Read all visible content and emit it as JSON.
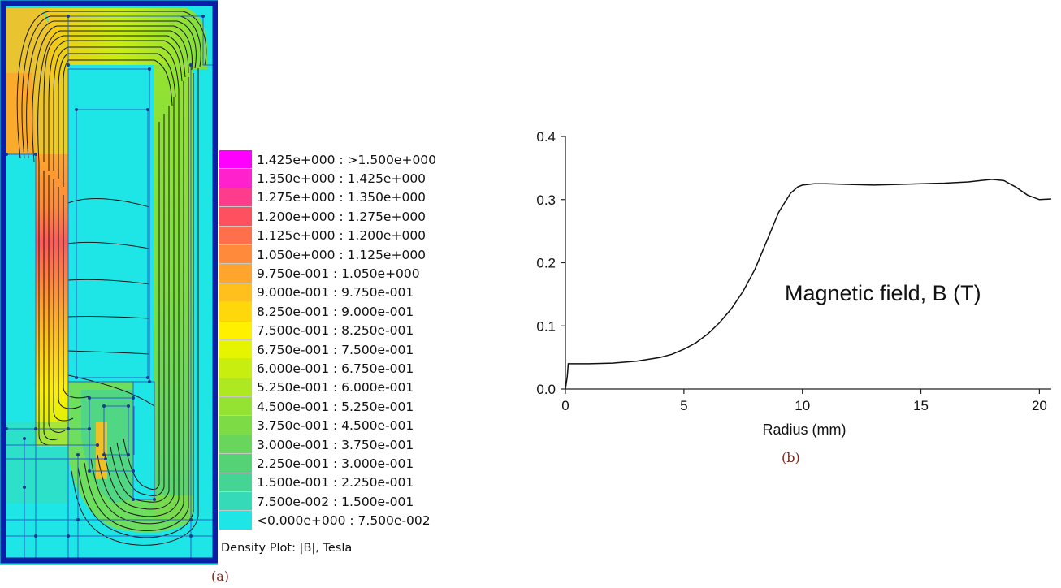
{
  "panel_a": {
    "label": "(a)",
    "caption": "Density Plot: |B|, Tesla",
    "legend": [
      {
        "range": "1.425e+000 : >1.500e+000",
        "color": "#ff00ff"
      },
      {
        "range": "1.350e+000 : 1.425e+000",
        "color": "#ff22cc"
      },
      {
        "range": "1.275e+000 : 1.350e+000",
        "color": "#ff3c8c"
      },
      {
        "range": "1.200e+000 : 1.275e+000",
        "color": "#ff5060"
      },
      {
        "range": "1.125e+000 : 1.200e+000",
        "color": "#ff6f4c"
      },
      {
        "range": "1.050e+000 : 1.125e+000",
        "color": "#ff8a3c"
      },
      {
        "range": "9.750e-001 : 1.050e+000",
        "color": "#ffa52c"
      },
      {
        "range": "9.000e-001 : 9.750e-001",
        "color": "#ffbf1c"
      },
      {
        "range": "8.250e-001 : 9.000e-001",
        "color": "#ffd80c"
      },
      {
        "range": "7.500e-001 : 8.250e-001",
        "color": "#fff000"
      },
      {
        "range": "6.750e-001 : 7.500e-001",
        "color": "#e6f400"
      },
      {
        "range": "6.000e-001 : 6.750e-001",
        "color": "#c8ee10"
      },
      {
        "range": "5.250e-001 : 6.000e-001",
        "color": "#aee820"
      },
      {
        "range": "4.500e-001 : 5.250e-001",
        "color": "#94e232"
      },
      {
        "range": "3.750e-001 : 4.500e-001",
        "color": "#7ddc46"
      },
      {
        "range": "3.000e-001 : 3.750e-001",
        "color": "#68d65c"
      },
      {
        "range": "2.250e-001 : 3.000e-001",
        "color": "#55d276"
      },
      {
        "range": "1.500e-001 : 2.250e-001",
        "color": "#44d494"
      },
      {
        "range": "7.500e-002 : 1.500e-001",
        "color": "#35dbb8"
      },
      {
        "range": "<0.000e+000 : 7.500e-002",
        "color": "#1fe6e6"
      }
    ]
  },
  "panel_b": {
    "label": "(b)",
    "annotation": "Magnetic field, B (T)"
  },
  "chart_data": {
    "type": "line",
    "title": "",
    "xlabel": "Radius (mm)",
    "ylabel": "",
    "xlim": [
      0,
      20.5
    ],
    "ylim": [
      0,
      0.4
    ],
    "xticks": [
      0,
      5,
      10,
      15,
      20
    ],
    "yticks": [
      0.0,
      0.1,
      0.2,
      0.3,
      0.4
    ],
    "ytick_labels": [
      "0.0",
      "0.1",
      "0.2",
      "0.3",
      "0.4"
    ],
    "grid": false,
    "series": [
      {
        "x": [
          0,
          0.08,
          0.12,
          1,
          2,
          3,
          4,
          4.5,
          5,
          5.5,
          6,
          6.5,
          7,
          7.5,
          8,
          8.5,
          9,
          9.5,
          9.8,
          10,
          10.5,
          11,
          12,
          13,
          14,
          15,
          16,
          17,
          17.5,
          18,
          18.5,
          19,
          19.5,
          20,
          20.5
        ],
        "y": [
          0.0,
          0.02,
          0.04,
          0.04,
          0.041,
          0.044,
          0.05,
          0.055,
          0.063,
          0.073,
          0.087,
          0.105,
          0.127,
          0.155,
          0.19,
          0.235,
          0.28,
          0.31,
          0.32,
          0.323,
          0.325,
          0.325,
          0.324,
          0.323,
          0.324,
          0.325,
          0.326,
          0.328,
          0.33,
          0.332,
          0.33,
          0.32,
          0.307,
          0.3,
          0.301
        ]
      }
    ]
  }
}
